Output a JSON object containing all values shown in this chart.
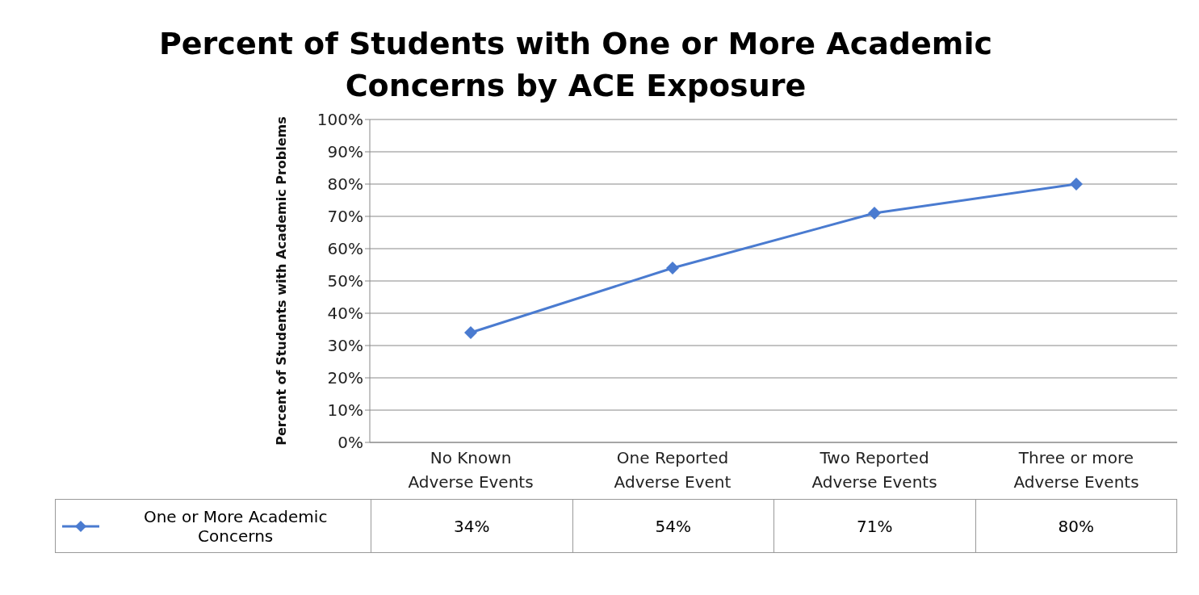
{
  "chart_data": {
    "type": "line",
    "title": "Percent of Students with One or More Academic Concerns by ACE Exposure",
    "ylabel": "Percent of Students with Academic Problems",
    "categories": [
      "No Known Adverse Events",
      "One Reported Adverse Event",
      "Two Reported Adverse Events",
      "Three or more Adverse Events"
    ],
    "series": [
      {
        "name": "One or More Academic Concerns",
        "color": "#4a7bd0",
        "values": [
          34,
          54,
          71,
          80
        ],
        "value_labels": [
          "34%",
          "54%",
          "71%",
          "80%"
        ]
      }
    ],
    "ylim": [
      0,
      100
    ],
    "yticks": [
      {
        "value": 0,
        "label": "0%"
      },
      {
        "value": 10,
        "label": "10%"
      },
      {
        "value": 20,
        "label": "20%"
      },
      {
        "value": 30,
        "label": "30%"
      },
      {
        "value": 40,
        "label": "40%"
      },
      {
        "value": 50,
        "label": "50%"
      },
      {
        "value": 60,
        "label": "60%"
      },
      {
        "value": 70,
        "label": "70%"
      },
      {
        "value": 80,
        "label": "80%"
      },
      {
        "value": 90,
        "label": "90%"
      },
      {
        "value": 100,
        "label": "100%"
      }
    ],
    "grid": "y",
    "legend": "bottom left",
    "marker": "diamond",
    "line_style": "solid"
  }
}
